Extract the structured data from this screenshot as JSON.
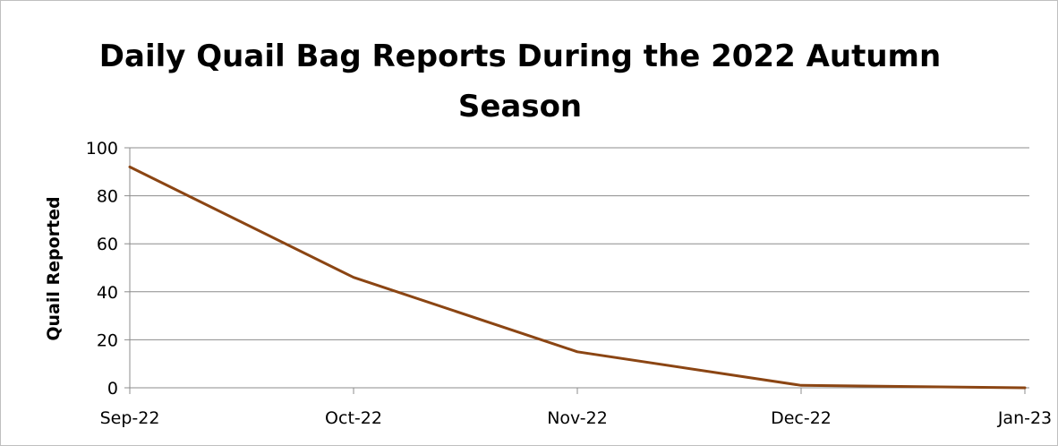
{
  "chart_data": {
    "type": "line",
    "title": "Daily Quail Bag Reports During the 2022 Autumn Season",
    "xlabel": "",
    "ylabel": "Quail Reported",
    "categories": [
      "Sep-22",
      "Oct-22",
      "Nov-22",
      "Dec-22",
      "Jan-23"
    ],
    "series": [
      {
        "values": [
          92,
          46,
          15,
          1,
          0
        ],
        "color": "#8b4513"
      }
    ],
    "ylim": [
      0,
      100
    ],
    "yticks": [
      "0",
      "20",
      "40",
      "60",
      "80",
      "100"
    ],
    "grid": true,
    "legend": "none"
  },
  "colors": {
    "line": "#8b4513",
    "grid": "#8c8c8c",
    "axis": "#8c8c8c"
  }
}
